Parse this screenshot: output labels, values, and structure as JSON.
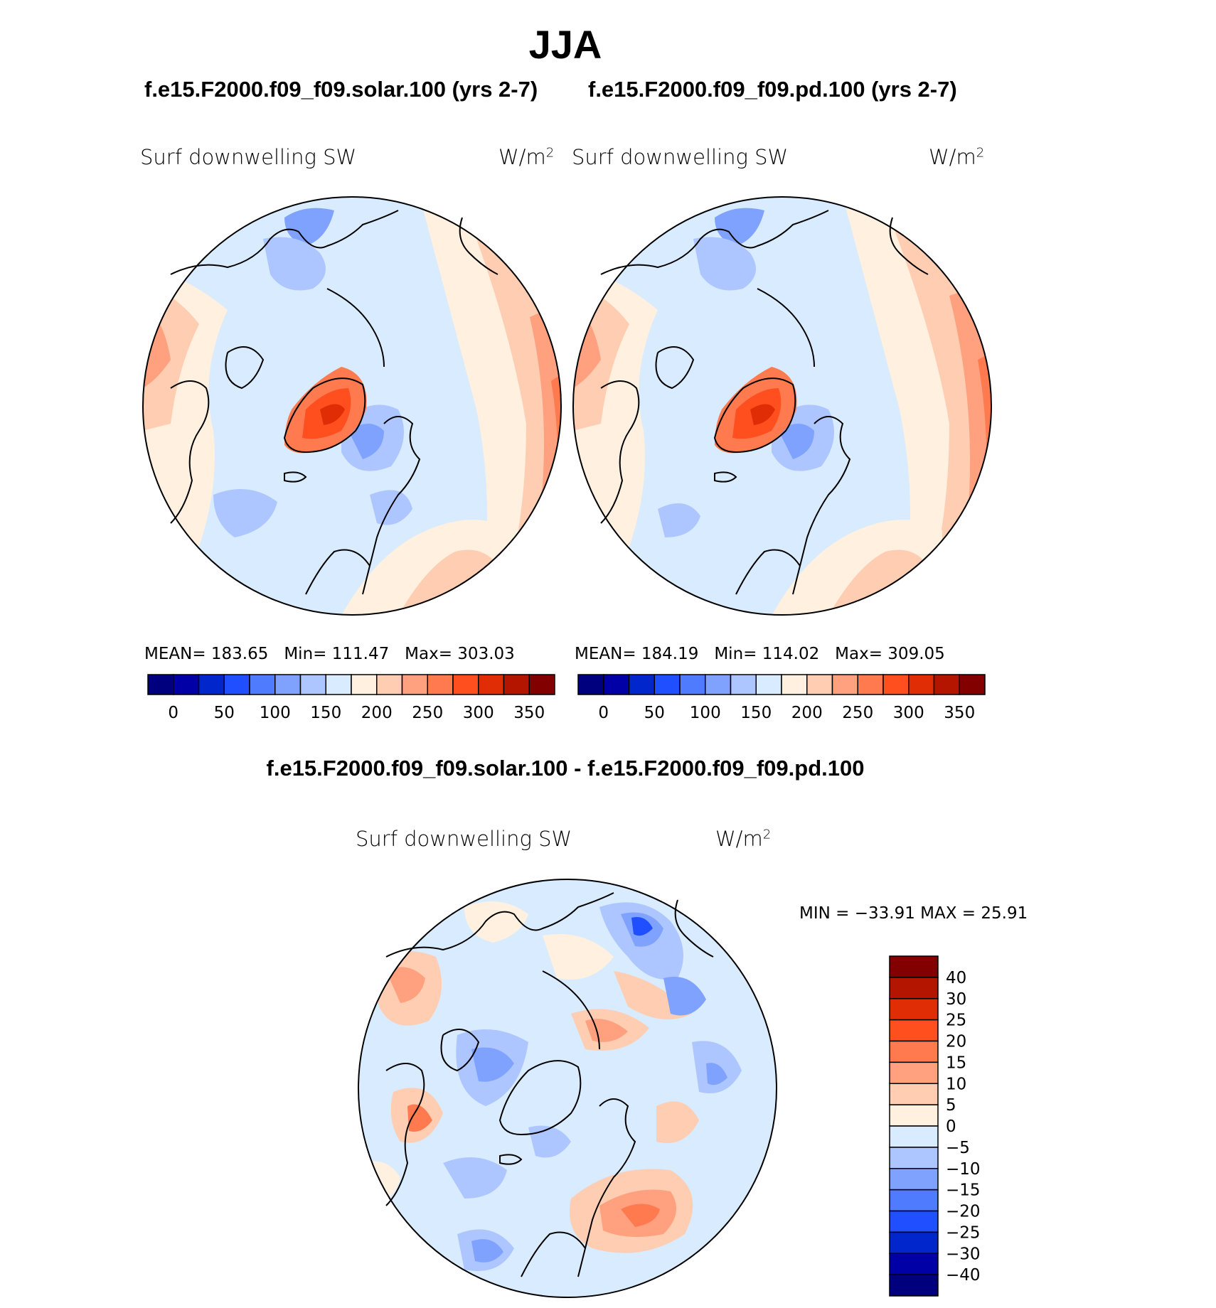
{
  "title": "JJA",
  "panels": [
    {
      "case_title": "f.e15.F2000.f09_f09.solar.100 (yrs 2-7)",
      "variable": "Surf downwelling SW",
      "units": "W/m",
      "units_exp": "2",
      "stats": {
        "mean_label": "MEAN=",
        "mean": "183.65",
        "min_label": "Min=",
        "min": "111.47",
        "max_label": "Max=",
        "max": "303.03"
      }
    },
    {
      "case_title": "f.e15.F2000.f09_f09.pd.100 (yrs 2-7)",
      "variable": "Surf downwelling SW",
      "units": "W/m",
      "units_exp": "2",
      "stats": {
        "mean_label": "MEAN=",
        "mean": "184.19",
        "min_label": "Min=",
        "min": "114.02",
        "max_label": "Max=",
        "max": "309.05"
      }
    }
  ],
  "abs_colorbar": {
    "colors": [
      "#00007f",
      "#0000a6",
      "#0026cc",
      "#1f4fff",
      "#4f7bff",
      "#7fa2ff",
      "#aec6ff",
      "#d8ebff",
      "#fff0e0",
      "#ffcdb2",
      "#ffa07f",
      "#ff7a4f",
      "#ff4f1f",
      "#e02d05",
      "#b41500",
      "#820000"
    ],
    "labels": [
      "0",
      "50",
      "100",
      "150",
      "200",
      "250",
      "300",
      "350"
    ]
  },
  "diff_panel": {
    "title": "f.e15.F2000.f09_f09.solar.100 - f.e15.F2000.f09_f09.pd.100",
    "variable": "Surf downwelling SW",
    "units": "W/m",
    "units_exp": "2",
    "minmax": "MIN = −33.91  MAX =   25.91"
  },
  "diff_colorbar": {
    "colors": [
      "#820000",
      "#b41500",
      "#e02d05",
      "#ff4f1f",
      "#ff7a4f",
      "#ffa07f",
      "#ffcdb2",
      "#fff0e0",
      "#d8ebff",
      "#aec6ff",
      "#7fa2ff",
      "#4f7bff",
      "#1f4fff",
      "#0026cc",
      "#0000a6",
      "#00007f"
    ],
    "labels": [
      "40",
      "30",
      "25",
      "20",
      "15",
      "10",
      "5",
      "0",
      "−5",
      "−10",
      "−15",
      "−20",
      "−25",
      "−30",
      "−40"
    ]
  },
  "colors": {
    "land_outline": "#000000",
    "ocean_light": "#d8ebff"
  }
}
